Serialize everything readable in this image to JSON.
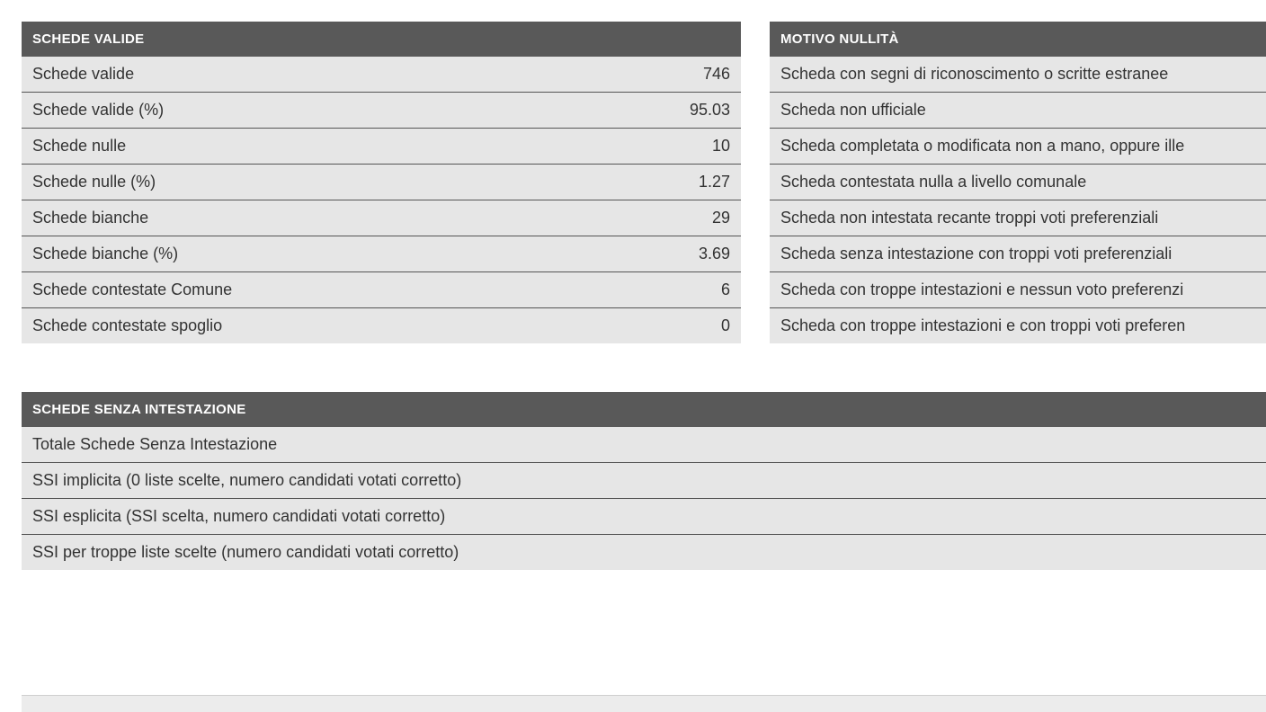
{
  "colors": {
    "header_bg": "#595959",
    "header_text": "#ffffff",
    "row_bg": "#e6e6e6",
    "row_text": "#333333",
    "row_border": "#555555",
    "page_bg": "#ffffff"
  },
  "left_table": {
    "header": "SCHEDE VALIDE",
    "rows": [
      {
        "label": "Schede valide",
        "value": "746"
      },
      {
        "label": "Schede valide (%)",
        "value": "95.03"
      },
      {
        "label": "Schede nulle",
        "value": "10"
      },
      {
        "label": "Schede nulle (%)",
        "value": "1.27"
      },
      {
        "label": "Schede bianche",
        "value": "29"
      },
      {
        "label": "Schede bianche (%)",
        "value": "3.69"
      },
      {
        "label": "Schede contestate Comune",
        "value": "6"
      },
      {
        "label": "Schede contestate spoglio",
        "value": "0"
      }
    ]
  },
  "right_table": {
    "header": "MOTIVO NULLITÀ",
    "rows": [
      {
        "label": "Scheda con segni di riconoscimento o scritte estranee"
      },
      {
        "label": "Scheda non ufficiale"
      },
      {
        "label": "Scheda completata o modificata non a mano, oppure ille"
      },
      {
        "label": "Scheda contestata nulla a livello comunale"
      },
      {
        "label": "Scheda non intestata recante troppi voti preferenziali"
      },
      {
        "label": "Scheda senza intestazione con troppi voti preferenziali"
      },
      {
        "label": "Scheda con troppe intestazioni e nessun voto preferenzi"
      },
      {
        "label": "Scheda con troppe intestazioni e con troppi voti preferen"
      }
    ]
  },
  "bottom_table": {
    "header": "SCHEDE SENZA INTESTAZIONE",
    "rows": [
      {
        "label": "Totale Schede Senza Intestazione"
      },
      {
        "label": "SSI implicita (0 liste scelte, numero candidati votati corretto)"
      },
      {
        "label": "SSI esplicita (SSI scelta, numero candidati votati corretto)"
      },
      {
        "label": "SSI per troppe liste scelte (numero candidati votati corretto)"
      }
    ]
  }
}
